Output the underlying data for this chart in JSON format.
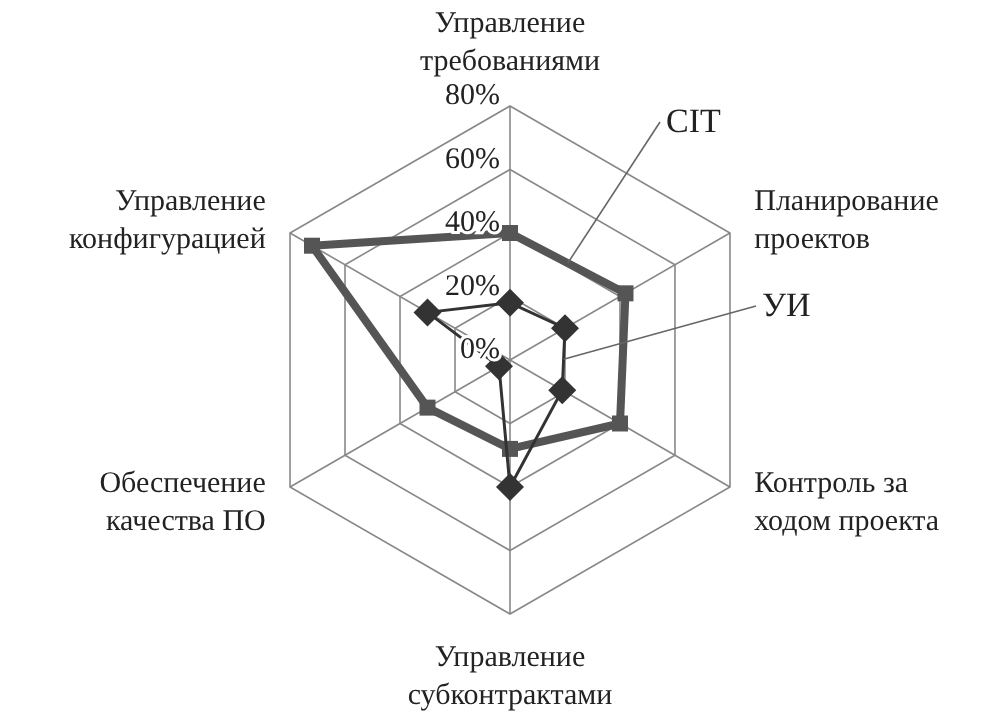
{
  "chart_data": {
    "type": "radar",
    "categories": [
      "Управление\nтребованиями",
      "Планирование\nпроектов",
      "Контроль за\nходом проекта",
      "Управление\nсубконтрактами",
      "Обеспечение\nкачества ПО",
      "Управление\nконфигурацией"
    ],
    "series": [
      {
        "name": "СІТ",
        "color": "#555555",
        "values": [
          40,
          42,
          40,
          28,
          30,
          72
        ],
        "marker": "square"
      },
      {
        "name": "УИ",
        "color": "#333333",
        "values": [
          18,
          20,
          19,
          40,
          4,
          30
        ],
        "marker": "diamond"
      }
    ],
    "ylim": [
      0,
      80
    ],
    "yticks": [
      {
        "value": 0,
        "label": "0%"
      },
      {
        "value": 20,
        "label": "20%"
      },
      {
        "value": 40,
        "label": "40%"
      },
      {
        "value": 60,
        "label": "60%"
      },
      {
        "value": 80,
        "label": "80%"
      }
    ],
    "grid": true
  }
}
